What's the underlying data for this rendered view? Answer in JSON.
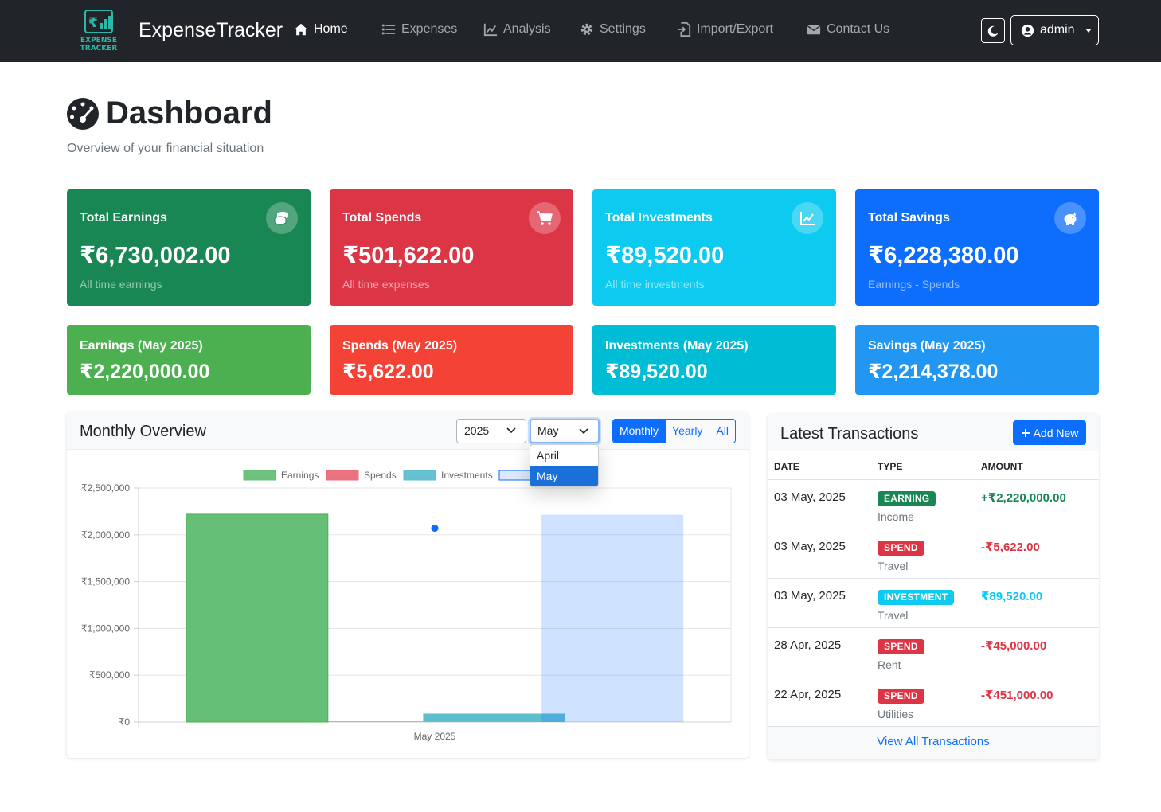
{
  "app": {
    "brand": "ExpenseTracker",
    "logo_text_1": "EXPENSE",
    "logo_text_2": "TRACKER"
  },
  "nav": {
    "items": [
      {
        "label": "Home",
        "icon": "home-icon",
        "active": true
      },
      {
        "label": "Expenses",
        "icon": "list-icon",
        "active": false
      },
      {
        "label": "Analysis",
        "icon": "chart-line-icon",
        "active": false
      },
      {
        "label": "Settings",
        "icon": "gear-icon",
        "active": false
      },
      {
        "label": "Import/Export",
        "icon": "file-import-icon",
        "active": false
      },
      {
        "label": "Contact Us",
        "icon": "envelope-icon",
        "active": false
      }
    ],
    "user": "admin"
  },
  "header": {
    "title": "Dashboard",
    "subtitle": "Overview of your financial situation"
  },
  "summary": [
    {
      "title": "Total Earnings",
      "value": "₹6,730,002.00",
      "sub": "All time earnings",
      "icon": "coins-icon",
      "color": "#198754"
    },
    {
      "title": "Total Spends",
      "value": "₹501,622.00",
      "sub": "All time expenses",
      "icon": "cart-icon",
      "color": "#dc3545"
    },
    {
      "title": "Total Investments",
      "value": "₹89,520.00",
      "sub": "All time investments",
      "icon": "chart-line-icon",
      "color": "#0dcaf0"
    },
    {
      "title": "Total Savings",
      "value": "₹6,228,380.00",
      "sub": "Earnings - Spends",
      "icon": "piggy-bank-icon",
      "color": "#0d6efd"
    }
  ],
  "monthly": [
    {
      "title": "Earnings (May 2025)",
      "value": "₹2,220,000.00",
      "color": "#4caf50"
    },
    {
      "title": "Spends (May 2025)",
      "value": "₹5,622.00",
      "color": "#f44336"
    },
    {
      "title": "Investments (May 2025)",
      "value": "₹89,520.00",
      "color": "#00bcd4"
    },
    {
      "title": "Savings (May 2025)",
      "value": "₹2,214,378.00",
      "color": "#2196f3"
    }
  ],
  "overview": {
    "title": "Monthly Overview",
    "year": "2025",
    "month": "May",
    "month_options": [
      "April",
      "May"
    ],
    "toggle": [
      "Monthly",
      "Yearly",
      "All"
    ]
  },
  "chart_data": {
    "type": "bar",
    "categories": [
      "May 2025"
    ],
    "series": [
      {
        "name": "Earnings",
        "values": [
          2220000
        ],
        "color": "#66bf77"
      },
      {
        "name": "Spends",
        "values": [
          5622
        ],
        "color": "#e96b78"
      },
      {
        "name": "Investments",
        "values": [
          89520
        ],
        "color": "#5cbfd0"
      },
      {
        "name": "Savings",
        "values": [
          2214378
        ],
        "color": "#0d6efd"
      }
    ],
    "ylim": [
      0,
      2500000
    ],
    "yticks": [
      "₹0",
      "₹500,000",
      "₹1,000,000",
      "₹1,500,000",
      "₹2,000,000",
      "₹2,500,000"
    ],
    "grid": true,
    "legend": "top"
  },
  "transactions": {
    "title": "Latest Transactions",
    "add_label": "Add New",
    "columns": [
      "DATE",
      "TYPE",
      "AMOUNT"
    ],
    "rows": [
      {
        "date": "03 May, 2025",
        "type": "EARNING",
        "category": "Income",
        "amount": "+₹2,220,000.00",
        "color": "#198754"
      },
      {
        "date": "03 May, 2025",
        "type": "SPEND",
        "category": "Travel",
        "amount": "-₹5,622.00",
        "color": "#dc3545"
      },
      {
        "date": "03 May, 2025",
        "type": "INVESTMENT",
        "category": "Travel",
        "amount": "₹89,520.00",
        "color": "#0dcaf0"
      },
      {
        "date": "28 Apr, 2025",
        "type": "SPEND",
        "category": "Rent",
        "amount": "-₹45,000.00",
        "color": "#dc3545"
      },
      {
        "date": "22 Apr, 2025",
        "type": "SPEND",
        "category": "Utilities",
        "amount": "-₹451,000.00",
        "color": "#dc3545"
      }
    ],
    "view_all": "View All Transactions"
  }
}
